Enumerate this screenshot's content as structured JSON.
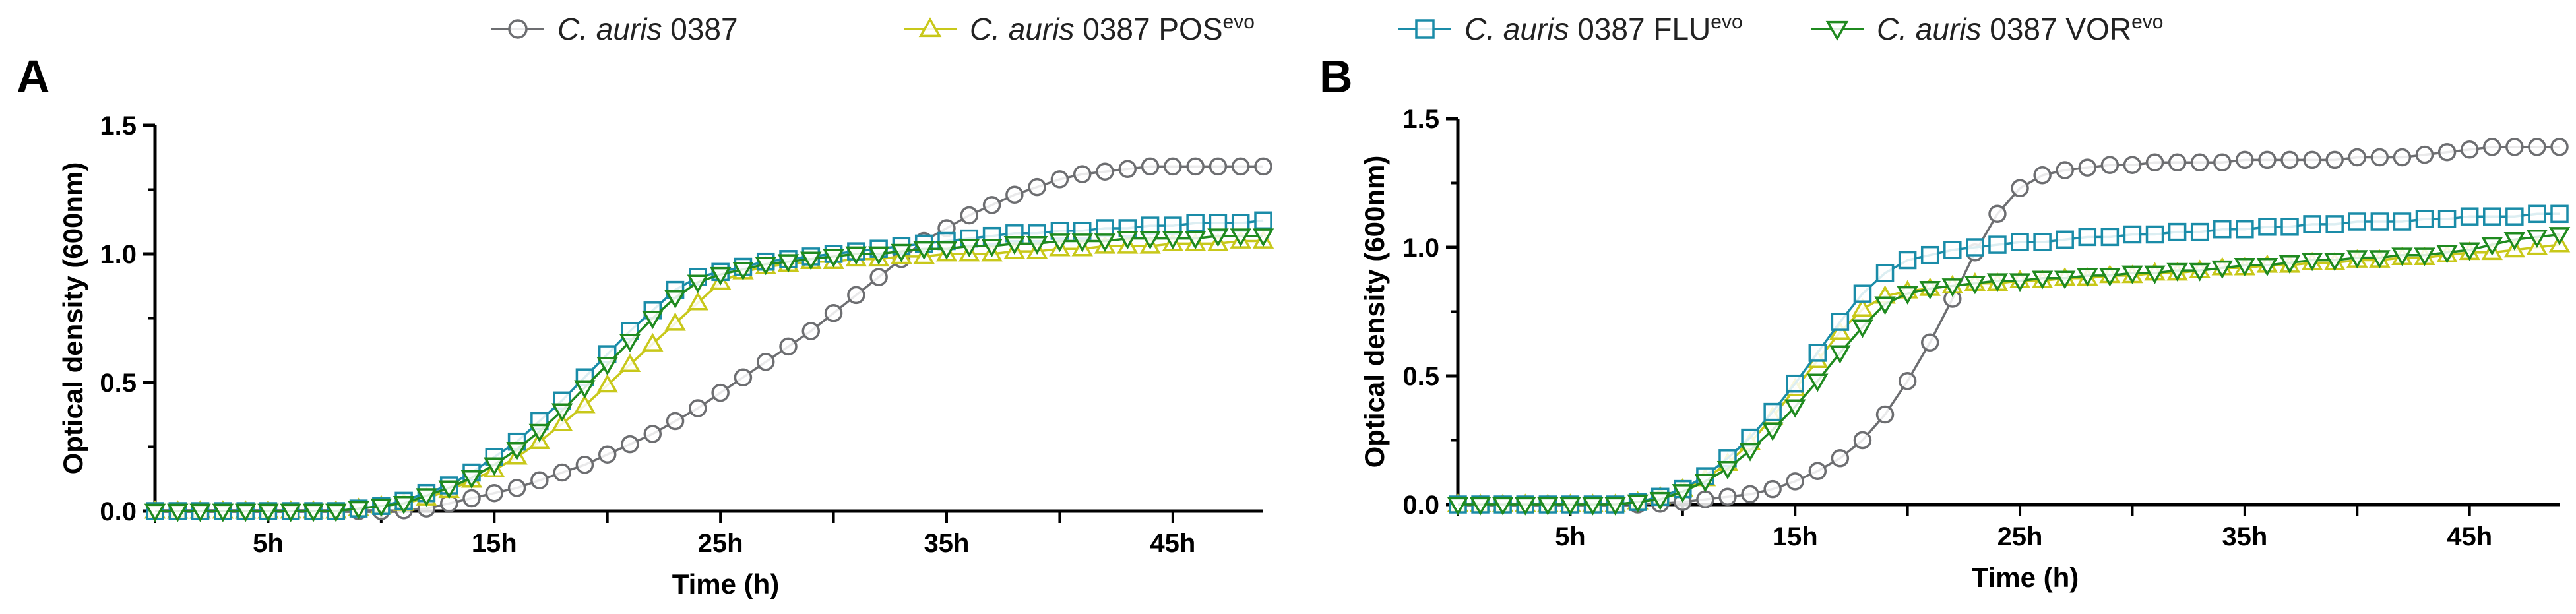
{
  "legend": {
    "entries": [
      {
        "italic": "C. auris",
        "text": " 0387",
        "sup": "",
        "color": "#6d6e71",
        "marker": "circle"
      },
      {
        "italic": "C. auris",
        "text": " 0387 POS",
        "sup": "evo",
        "color": "#c8c81a",
        "marker": "triangle-up"
      },
      {
        "italic": "C. auris",
        "text": " 0387 FLU",
        "sup": "evo",
        "color": "#1a8ca8",
        "marker": "square"
      },
      {
        "italic": "C. auris",
        "text": " 0387 VOR",
        "sup": "evo",
        "color": "#1f8a1f",
        "marker": "triangle-down"
      }
    ]
  },
  "chart_data": [
    {
      "panel": "A",
      "type": "line",
      "xlabel": "Time (h)",
      "ylabel": "Optical density (600nm)",
      "xlim": [
        0,
        49
      ],
      "ylim": [
        0,
        1.5
      ],
      "x_ticks": [
        {
          "value": 5,
          "label": "5h"
        },
        {
          "value": 15,
          "label": "15h"
        },
        {
          "value": 25,
          "label": "25h"
        },
        {
          "value": 35,
          "label": "35h"
        },
        {
          "value": 45,
          "label": "45h"
        }
      ],
      "y_ticks": [
        {
          "value": 0.0,
          "label": "0.0"
        },
        {
          "value": 0.5,
          "label": "0.5"
        },
        {
          "value": 1.0,
          "label": "1.0"
        },
        {
          "value": 1.5,
          "label": "1.5"
        }
      ],
      "x": [
        0,
        1,
        2,
        3,
        4,
        5,
        6,
        7,
        8,
        9,
        10,
        11,
        12,
        13,
        14,
        15,
        16,
        17,
        18,
        19,
        20,
        21,
        22,
        23,
        24,
        25,
        26,
        27,
        28,
        29,
        30,
        31,
        32,
        33,
        34,
        35,
        36,
        37,
        38,
        39,
        40,
        41,
        42,
        43,
        44,
        45,
        46,
        47,
        48,
        49
      ],
      "series": [
        {
          "name": "C. auris 0387",
          "color": "#6d6e71",
          "marker": "circle",
          "values": [
            0,
            0,
            0,
            0,
            0,
            0,
            0,
            0,
            0,
            0,
            0,
            0.003,
            0.01,
            0.03,
            0.05,
            0.07,
            0.09,
            0.12,
            0.15,
            0.18,
            0.22,
            0.26,
            0.3,
            0.35,
            0.4,
            0.46,
            0.52,
            0.58,
            0.64,
            0.7,
            0.77,
            0.84,
            0.91,
            0.98,
            1.05,
            1.1,
            1.15,
            1.19,
            1.23,
            1.26,
            1.29,
            1.31,
            1.32,
            1.33,
            1.34,
            1.34,
            1.34,
            1.34,
            1.34,
            1.34
          ]
        },
        {
          "name": "C. auris 0387 POSevo",
          "color": "#c8c81a",
          "marker": "triangle-up",
          "values": [
            0,
            0,
            0,
            0,
            0,
            0,
            0,
            0,
            0,
            0.01,
            0.02,
            0.03,
            0.05,
            0.08,
            0.12,
            0.16,
            0.21,
            0.27,
            0.34,
            0.41,
            0.49,
            0.57,
            0.65,
            0.73,
            0.81,
            0.89,
            0.93,
            0.95,
            0.96,
            0.97,
            0.97,
            0.98,
            0.98,
            0.99,
            0.99,
            1.0,
            1.0,
            1.0,
            1.01,
            1.01,
            1.02,
            1.02,
            1.03,
            1.03,
            1.03,
            1.04,
            1.04,
            1.04,
            1.05,
            1.05
          ]
        },
        {
          "name": "C. auris 0387 FLUevo",
          "color": "#1a8ca8",
          "marker": "square",
          "values": [
            0,
            0,
            0,
            0,
            0,
            0,
            0,
            0,
            0,
            0.01,
            0.02,
            0.04,
            0.07,
            0.1,
            0.15,
            0.21,
            0.27,
            0.35,
            0.43,
            0.52,
            0.61,
            0.7,
            0.78,
            0.86,
            0.91,
            0.93,
            0.95,
            0.97,
            0.98,
            0.99,
            1.0,
            1.01,
            1.02,
            1.03,
            1.04,
            1.05,
            1.06,
            1.07,
            1.08,
            1.08,
            1.09,
            1.09,
            1.1,
            1.1,
            1.11,
            1.11,
            1.12,
            1.12,
            1.12,
            1.13
          ]
        },
        {
          "name": "C. auris 0387 VORevo",
          "color": "#1f8a1f",
          "marker": "triangle-down",
          "values": [
            0,
            0,
            0,
            0,
            0,
            0,
            0,
            0,
            0,
            0.01,
            0.02,
            0.03,
            0.06,
            0.09,
            0.13,
            0.18,
            0.24,
            0.31,
            0.39,
            0.48,
            0.57,
            0.66,
            0.75,
            0.83,
            0.89,
            0.92,
            0.94,
            0.96,
            0.97,
            0.98,
            0.99,
            1.0,
            1.0,
            1.01,
            1.02,
            1.02,
            1.03,
            1.03,
            1.04,
            1.04,
            1.05,
            1.05,
            1.05,
            1.06,
            1.06,
            1.06,
            1.06,
            1.07,
            1.07,
            1.07
          ]
        }
      ]
    },
    {
      "panel": "B",
      "type": "line",
      "xlabel": "Time (h)",
      "ylabel": "Optical density (600nm)",
      "xlim": [
        0,
        49
      ],
      "ylim": [
        0,
        1.5
      ],
      "x_ticks": [
        {
          "value": 5,
          "label": "5h"
        },
        {
          "value": 15,
          "label": "15h"
        },
        {
          "value": 25,
          "label": "25h"
        },
        {
          "value": 35,
          "label": "35h"
        },
        {
          "value": 45,
          "label": "45h"
        }
      ],
      "y_ticks": [
        {
          "value": 0.0,
          "label": "0.0"
        },
        {
          "value": 0.5,
          "label": "0.5"
        },
        {
          "value": 1.0,
          "label": "1.0"
        },
        {
          "value": 1.5,
          "label": "1.5"
        }
      ],
      "x": [
        0,
        1,
        2,
        3,
        4,
        5,
        6,
        7,
        8,
        9,
        10,
        11,
        12,
        13,
        14,
        15,
        16,
        17,
        18,
        19,
        20,
        21,
        22,
        23,
        24,
        25,
        26,
        27,
        28,
        29,
        30,
        31,
        32,
        33,
        34,
        35,
        36,
        37,
        38,
        39,
        40,
        41,
        42,
        43,
        44,
        45,
        46,
        47,
        48,
        49
      ],
      "series": [
        {
          "name": "C. auris 0387",
          "color": "#6d6e71",
          "marker": "circle",
          "values": [
            0,
            0,
            0,
            0,
            0,
            0,
            0,
            0,
            0,
            0.003,
            0.01,
            0.02,
            0.03,
            0.04,
            0.06,
            0.09,
            0.13,
            0.18,
            0.25,
            0.35,
            0.48,
            0.63,
            0.8,
            0.98,
            1.13,
            1.23,
            1.28,
            1.3,
            1.31,
            1.32,
            1.32,
            1.33,
            1.33,
            1.33,
            1.33,
            1.34,
            1.34,
            1.34,
            1.34,
            1.34,
            1.35,
            1.35,
            1.35,
            1.36,
            1.37,
            1.38,
            1.39,
            1.39,
            1.39,
            1.39
          ]
        },
        {
          "name": "C. auris 0387 POSevo",
          "color": "#c8c81a",
          "marker": "triangle-up",
          "values": [
            0,
            0,
            0,
            0,
            0,
            0,
            0,
            0,
            0.01,
            0.03,
            0.06,
            0.1,
            0.16,
            0.24,
            0.34,
            0.45,
            0.56,
            0.67,
            0.76,
            0.81,
            0.83,
            0.84,
            0.85,
            0.86,
            0.86,
            0.87,
            0.87,
            0.88,
            0.88,
            0.89,
            0.89,
            0.9,
            0.9,
            0.91,
            0.92,
            0.92,
            0.93,
            0.93,
            0.94,
            0.94,
            0.95,
            0.95,
            0.96,
            0.96,
            0.97,
            0.98,
            0.98,
            0.99,
            1.0,
            1.01
          ]
        },
        {
          "name": "C. auris 0387 FLUevo",
          "color": "#1a8ca8",
          "marker": "square",
          "values": [
            0,
            0,
            0,
            0,
            0,
            0,
            0,
            0,
            0.01,
            0.03,
            0.06,
            0.11,
            0.18,
            0.26,
            0.36,
            0.47,
            0.59,
            0.71,
            0.82,
            0.9,
            0.95,
            0.97,
            0.99,
            1.0,
            1.01,
            1.02,
            1.02,
            1.03,
            1.04,
            1.04,
            1.05,
            1.05,
            1.06,
            1.06,
            1.07,
            1.07,
            1.08,
            1.08,
            1.09,
            1.09,
            1.1,
            1.1,
            1.1,
            1.11,
            1.11,
            1.12,
            1.12,
            1.12,
            1.13,
            1.13
          ]
        },
        {
          "name": "C. auris 0387 VORevo",
          "color": "#1f8a1f",
          "marker": "triangle-down",
          "values": [
            0,
            0,
            0,
            0,
            0,
            0,
            0,
            0,
            0.01,
            0.02,
            0.05,
            0.09,
            0.14,
            0.21,
            0.29,
            0.38,
            0.48,
            0.59,
            0.69,
            0.78,
            0.82,
            0.84,
            0.85,
            0.86,
            0.87,
            0.87,
            0.88,
            0.88,
            0.89,
            0.89,
            0.9,
            0.9,
            0.91,
            0.91,
            0.92,
            0.93,
            0.93,
            0.94,
            0.95,
            0.95,
            0.96,
            0.96,
            0.97,
            0.97,
            0.98,
            0.99,
            1.01,
            1.03,
            1.04,
            1.05
          ]
        }
      ]
    }
  ]
}
